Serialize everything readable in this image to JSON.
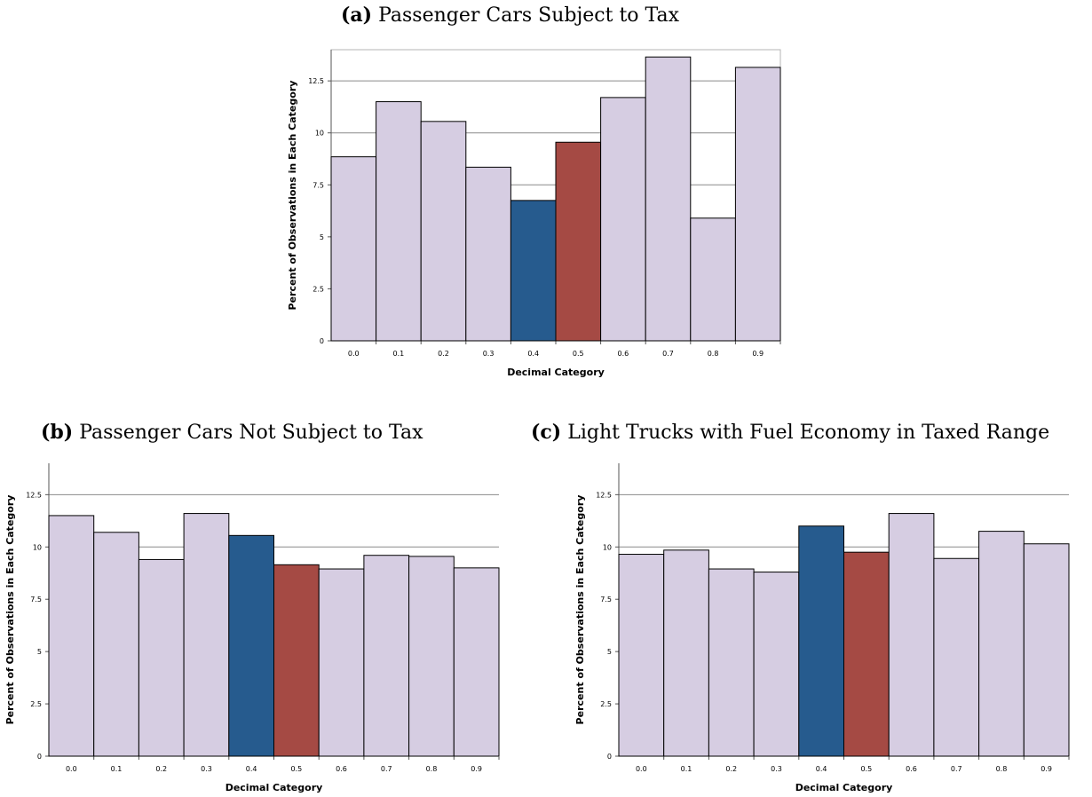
{
  "colors": {
    "default_bar": "#d6cde2",
    "highlight_blue": "#265b8e",
    "highlight_red": "#a54a44",
    "grid": "#8a8a8a",
    "bar_stroke": "#000000"
  },
  "chart_data": [
    {
      "type": "bar",
      "panel": "(a)",
      "title": "Passenger Cars Subject to Tax",
      "xlabel": "Decimal Category",
      "ylabel": "Percent of Observations in Each Category",
      "categories": [
        "0.0",
        "0.1",
        "0.2",
        "0.3",
        "0.4",
        "0.5",
        "0.6",
        "0.7",
        "0.8",
        "0.9"
      ],
      "values": [
        8.85,
        11.5,
        10.55,
        8.35,
        6.75,
        9.55,
        11.7,
        13.65,
        5.9,
        13.15
      ],
      "bar_colors": [
        "default",
        "default",
        "default",
        "default",
        "blue",
        "red",
        "default",
        "default",
        "default",
        "default"
      ],
      "yticks": [
        "0",
        "2.5",
        "5",
        "7.5",
        "10",
        "12.5"
      ],
      "ylim": [
        0,
        14
      ],
      "grid": true
    },
    {
      "type": "bar",
      "panel": "(b)",
      "title": "Passenger Cars Not Subject to Tax",
      "xlabel": "Decimal Category",
      "ylabel": "Percent of Observations in Each Category",
      "categories": [
        "0.0",
        "0.1",
        "0.2",
        "0.3",
        "0.4",
        "0.5",
        "0.6",
        "0.7",
        "0.8",
        "0.9"
      ],
      "values": [
        11.5,
        10.7,
        9.4,
        11.6,
        10.55,
        9.15,
        8.95,
        9.6,
        9.55,
        9.0
      ],
      "bar_colors": [
        "default",
        "default",
        "default",
        "default",
        "blue",
        "red",
        "default",
        "default",
        "default",
        "default"
      ],
      "yticks": [
        "0",
        "2.5",
        "5",
        "7.5",
        "10",
        "12.5"
      ],
      "ylim": [
        0,
        14
      ],
      "grid": true
    },
    {
      "type": "bar",
      "panel": "(c)",
      "title": "Light Trucks with Fuel Economy in Taxed Range",
      "xlabel": "Decimal Category",
      "ylabel": "Percent of Observations in Each Category",
      "categories": [
        "0.0",
        "0.1",
        "0.2",
        "0.3",
        "0.4",
        "0.5",
        "0.6",
        "0.7",
        "0.8",
        "0.9"
      ],
      "values": [
        9.65,
        9.85,
        8.95,
        8.8,
        11.0,
        9.75,
        11.6,
        9.45,
        10.75,
        10.15
      ],
      "bar_colors": [
        "default",
        "default",
        "default",
        "default",
        "blue",
        "red",
        "default",
        "default",
        "default",
        "default"
      ],
      "yticks": [
        "0",
        "2.5",
        "5",
        "7.5",
        "10",
        "12.5"
      ],
      "ylim": [
        0,
        14
      ],
      "grid": true
    }
  ]
}
